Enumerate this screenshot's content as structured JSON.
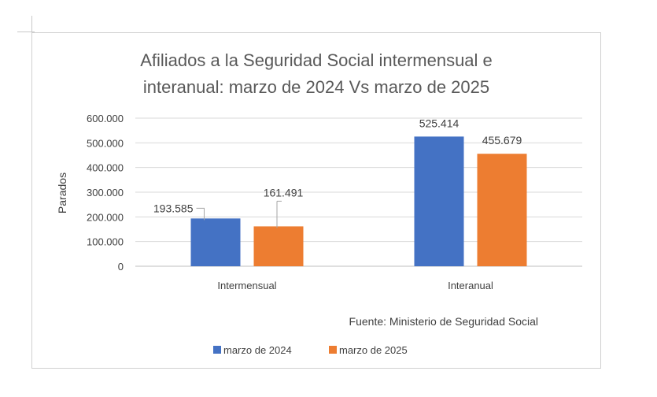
{
  "chart_data": {
    "type": "bar",
    "title_lines": [
      "Afiliados a la Seguridad Social intermensual e",
      "interanual: marzo de 2024 Vs marzo de 2025"
    ],
    "ylabel": "Parados",
    "xlabel": "",
    "categories": [
      "Intermensual",
      "Interanual"
    ],
    "series": [
      {
        "name": "marzo de 2024",
        "color": "#4472c4",
        "values": [
          193585,
          525414
        ],
        "labels": [
          "193.585",
          "525.414"
        ]
      },
      {
        "name": "marzo de 2025",
        "color": "#ed7d31",
        "values": [
          161491,
          455679
        ],
        "labels": [
          "161.491",
          "455.679"
        ]
      }
    ],
    "ylim": [
      0,
      600000
    ],
    "yticks": [
      0,
      100000,
      200000,
      300000,
      400000,
      500000,
      600000
    ],
    "ytick_labels": [
      "0",
      "100.000",
      "200.000",
      "300.000",
      "400.000",
      "500.000",
      "600.000"
    ],
    "grid": true,
    "legend_position": "bottom",
    "annotation": "Fuente: Ministerio de Seguridad Social"
  }
}
